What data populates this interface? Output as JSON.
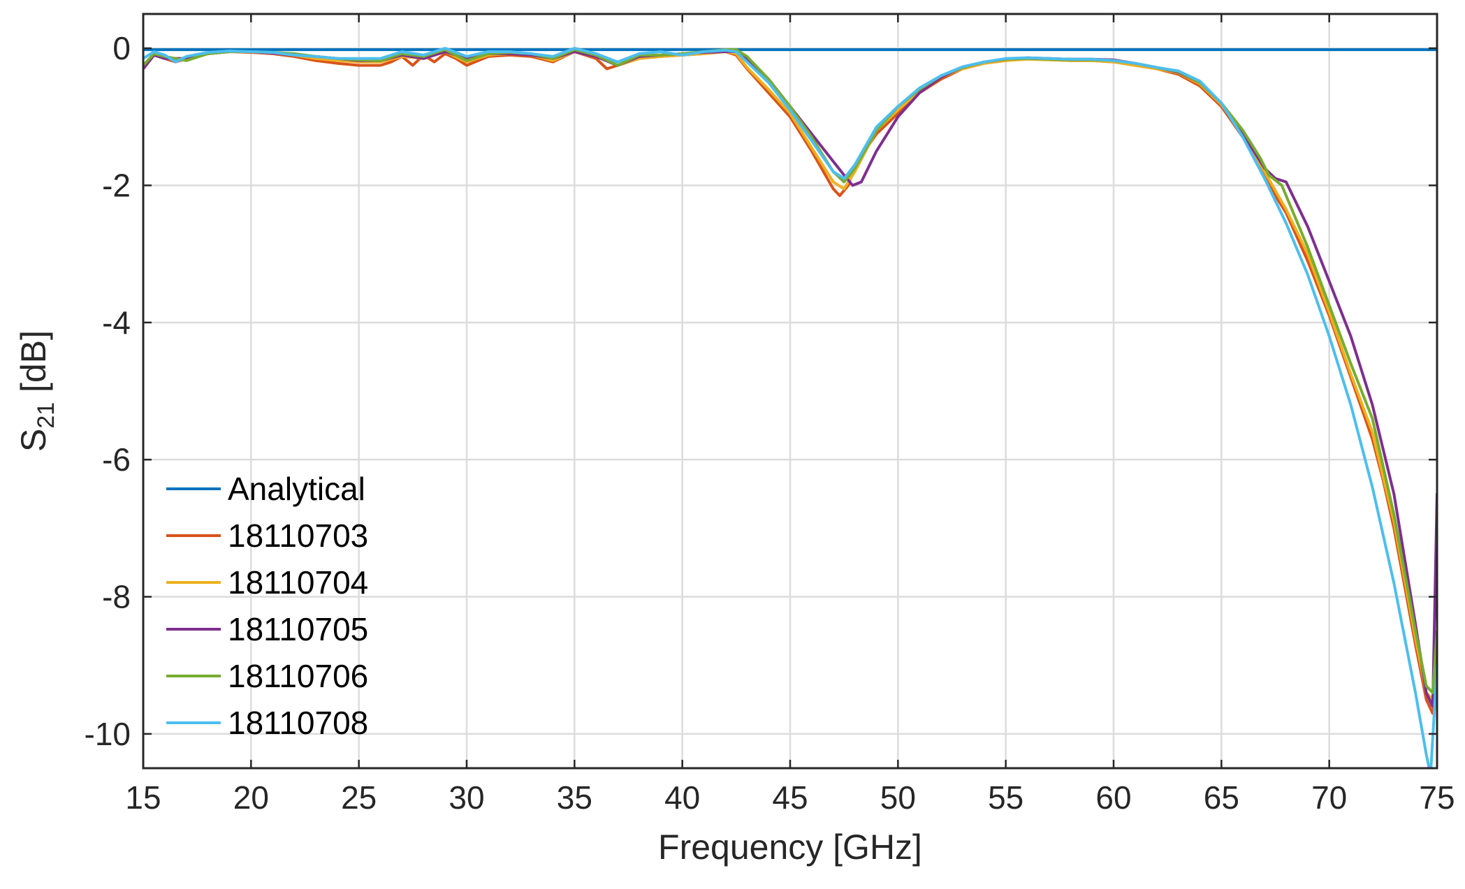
{
  "chart_data": {
    "type": "line",
    "title": "",
    "xlabel": "Frequency [GHz]",
    "ylabel": "S",
    "ylabel_sub": "21",
    "ylabel_unit": " [dB]",
    "xlim": [
      15,
      75
    ],
    "ylim": [
      -10.5,
      0.5
    ],
    "xticks": [
      15,
      20,
      25,
      30,
      35,
      40,
      45,
      50,
      55,
      60,
      65,
      70,
      75
    ],
    "yticks": [
      0,
      -2,
      -4,
      -6,
      -8,
      -10
    ],
    "grid": true,
    "legend_position": "bottom-left",
    "series": [
      {
        "name": "Analytical",
        "color": "#0072BD",
        "x": [
          15,
          75
        ],
        "y": [
          -0.02,
          -0.02
        ]
      },
      {
        "name": "18110703",
        "color": "#D95319",
        "x": [
          15,
          15.5,
          16,
          16.5,
          17,
          18,
          19,
          20,
          21,
          22,
          23,
          24,
          25,
          26,
          26.5,
          27,
          27.5,
          28,
          28.5,
          29,
          29.5,
          30,
          31,
          32,
          33,
          34,
          35,
          36,
          36.5,
          37,
          38,
          39,
          40,
          41,
          42,
          42.5,
          43,
          44,
          45,
          46,
          47,
          47.3,
          47.7,
          48,
          49,
          50,
          51,
          52,
          53,
          54,
          55,
          56,
          57,
          58,
          59,
          60,
          61,
          62,
          63,
          64,
          65,
          66,
          67,
          67.5,
          68,
          69,
          70,
          71,
          72,
          72.5,
          73,
          74,
          74.5,
          74.8,
          75
        ],
        "y": [
          -0.3,
          -0.1,
          -0.15,
          -0.2,
          -0.15,
          -0.08,
          -0.05,
          -0.06,
          -0.08,
          -0.12,
          -0.18,
          -0.22,
          -0.25,
          -0.25,
          -0.2,
          -0.12,
          -0.25,
          -0.1,
          -0.2,
          -0.08,
          -0.15,
          -0.25,
          -0.12,
          -0.1,
          -0.12,
          -0.2,
          -0.05,
          -0.15,
          -0.3,
          -0.25,
          -0.15,
          -0.12,
          -0.1,
          -0.08,
          -0.05,
          -0.1,
          -0.3,
          -0.65,
          -1.0,
          -1.5,
          -2.05,
          -2.15,
          -2.0,
          -1.7,
          -1.25,
          -0.95,
          -0.65,
          -0.45,
          -0.3,
          -0.22,
          -0.18,
          -0.15,
          -0.16,
          -0.18,
          -0.18,
          -0.2,
          -0.25,
          -0.3,
          -0.38,
          -0.55,
          -0.85,
          -1.3,
          -1.85,
          -2.15,
          -2.4,
          -3.1,
          -3.9,
          -4.8,
          -5.7,
          -6.3,
          -7.0,
          -8.7,
          -9.5,
          -9.7,
          -9.3
        ]
      },
      {
        "name": "18110704",
        "color": "#EDB120",
        "x": [
          15,
          15.5,
          16,
          17,
          18,
          19,
          20,
          21,
          22,
          23,
          24,
          25,
          26,
          27,
          28,
          29,
          30,
          31,
          32,
          33,
          34,
          35,
          36,
          37,
          38,
          39,
          40,
          41,
          42,
          42.5,
          43,
          44,
          45,
          46,
          47,
          47.5,
          48,
          49,
          50,
          51,
          52,
          53,
          54,
          55,
          56,
          57,
          58,
          59,
          60,
          61,
          62,
          63,
          64,
          65,
          66,
          67,
          68,
          69,
          70,
          71,
          72,
          73,
          74,
          74.5,
          74.8,
          75
        ],
        "y": [
          -0.25,
          -0.1,
          -0.15,
          -0.15,
          -0.08,
          -0.05,
          -0.05,
          -0.07,
          -0.1,
          -0.15,
          -0.18,
          -0.2,
          -0.2,
          -0.12,
          -0.15,
          -0.05,
          -0.2,
          -0.1,
          -0.08,
          -0.1,
          -0.18,
          -0.05,
          -0.12,
          -0.25,
          -0.15,
          -0.12,
          -0.1,
          -0.08,
          -0.05,
          -0.08,
          -0.28,
          -0.6,
          -0.95,
          -1.45,
          -1.95,
          -2.05,
          -1.8,
          -1.2,
          -0.9,
          -0.62,
          -0.42,
          -0.3,
          -0.22,
          -0.18,
          -0.16,
          -0.17,
          -0.18,
          -0.18,
          -0.2,
          -0.25,
          -0.3,
          -0.36,
          -0.52,
          -0.82,
          -1.25,
          -1.8,
          -2.35,
          -3.0,
          -3.85,
          -4.75,
          -5.6,
          -6.9,
          -8.6,
          -9.4,
          -9.5,
          -9.0
        ]
      },
      {
        "name": "18110705",
        "color": "#7E2F8E",
        "x": [
          15,
          15.5,
          16,
          17,
          18,
          19,
          20,
          21,
          22,
          23,
          24,
          25,
          26,
          27,
          28,
          29,
          30,
          31,
          32,
          33,
          34,
          35,
          36,
          37,
          38,
          39,
          40,
          41,
          42,
          42.5,
          43,
          44,
          45,
          46,
          47,
          47.5,
          47.9,
          48.3,
          49,
          50,
          51,
          52,
          53,
          54,
          55,
          56,
          57,
          58,
          59,
          60,
          61,
          62,
          63,
          64,
          65,
          66,
          67,
          67.5,
          68,
          69,
          70,
          71,
          72,
          73,
          74,
          74.5,
          74.8,
          75
        ],
        "y": [
          -0.3,
          -0.1,
          -0.15,
          -0.15,
          -0.08,
          -0.05,
          -0.05,
          -0.07,
          -0.1,
          -0.12,
          -0.15,
          -0.18,
          -0.18,
          -0.1,
          -0.15,
          -0.05,
          -0.15,
          -0.08,
          -0.08,
          -0.1,
          -0.15,
          -0.05,
          -0.12,
          -0.25,
          -0.12,
          -0.1,
          -0.08,
          -0.06,
          -0.05,
          -0.05,
          -0.15,
          -0.45,
          -0.85,
          -1.25,
          -1.65,
          -1.85,
          -2.0,
          -1.95,
          -1.5,
          -1.0,
          -0.65,
          -0.42,
          -0.28,
          -0.2,
          -0.16,
          -0.14,
          -0.15,
          -0.16,
          -0.16,
          -0.17,
          -0.22,
          -0.28,
          -0.35,
          -0.5,
          -0.8,
          -1.25,
          -1.75,
          -1.9,
          -1.95,
          -2.6,
          -3.4,
          -4.2,
          -5.2,
          -6.5,
          -8.4,
          -9.4,
          -9.6,
          -6.5
        ]
      },
      {
        "name": "18110706",
        "color": "#77AC30",
        "x": [
          15,
          15.5,
          16,
          17,
          18,
          19,
          20,
          21,
          22,
          23,
          24,
          25,
          26,
          27,
          28,
          29,
          30,
          31,
          32,
          33,
          34,
          35,
          36,
          37,
          38,
          39,
          40,
          41,
          42,
          42.5,
          43,
          44,
          45,
          46,
          47,
          47.5,
          48,
          49,
          50,
          51,
          52,
          53,
          54,
          55,
          56,
          57,
          58,
          59,
          60,
          61,
          62,
          63,
          64,
          65,
          66,
          66.8,
          67.2,
          67.8,
          69,
          70,
          71,
          72,
          73,
          74,
          74.5,
          74.8,
          75
        ],
        "y": [
          -0.25,
          -0.08,
          -0.12,
          -0.18,
          -0.08,
          -0.05,
          -0.05,
          -0.06,
          -0.08,
          -0.12,
          -0.15,
          -0.17,
          -0.18,
          -0.08,
          -0.12,
          -0.02,
          -0.18,
          -0.08,
          -0.06,
          -0.08,
          -0.15,
          -0.02,
          -0.1,
          -0.25,
          -0.1,
          -0.1,
          -0.08,
          -0.05,
          -0.02,
          -0.02,
          -0.12,
          -0.45,
          -0.85,
          -1.3,
          -1.8,
          -1.95,
          -1.75,
          -1.2,
          -0.85,
          -0.6,
          -0.4,
          -0.28,
          -0.2,
          -0.16,
          -0.15,
          -0.16,
          -0.17,
          -0.17,
          -0.18,
          -0.22,
          -0.28,
          -0.34,
          -0.5,
          -0.8,
          -1.2,
          -1.6,
          -1.85,
          -2.0,
          -2.9,
          -3.75,
          -4.6,
          -5.4,
          -6.8,
          -8.5,
          -9.3,
          -9.4,
          -8.5
        ]
      },
      {
        "name": "18110708",
        "color": "#4DBEEE",
        "x": [
          15,
          15.5,
          16,
          16.5,
          17,
          18,
          19,
          20,
          21,
          22,
          23,
          24,
          25,
          26,
          27,
          28,
          29,
          30,
          31,
          32,
          33,
          34,
          35,
          36,
          37,
          38,
          39,
          40,
          41,
          42,
          42.5,
          43,
          44,
          45,
          46,
          47,
          47.5,
          48,
          49,
          50,
          51,
          52,
          53,
          54,
          55,
          56,
          57,
          58,
          59,
          60,
          61,
          62,
          63,
          64,
          65,
          66,
          67,
          68,
          69,
          70,
          71,
          72,
          73,
          74,
          74.5,
          74.7,
          75
        ],
        "y": [
          -0.15,
          -0.05,
          -0.1,
          -0.2,
          -0.12,
          -0.06,
          -0.04,
          -0.05,
          -0.06,
          -0.1,
          -0.12,
          -0.15,
          -0.15,
          -0.15,
          -0.05,
          -0.1,
          0.0,
          -0.12,
          -0.05,
          -0.05,
          -0.08,
          -0.12,
          0.0,
          -0.08,
          -0.2,
          -0.08,
          -0.05,
          -0.1,
          -0.05,
          -0.03,
          -0.05,
          -0.2,
          -0.5,
          -0.9,
          -1.35,
          -1.8,
          -1.9,
          -1.7,
          -1.15,
          -0.85,
          -0.58,
          -0.4,
          -0.27,
          -0.2,
          -0.15,
          -0.14,
          -0.15,
          -0.16,
          -0.16,
          -0.18,
          -0.22,
          -0.28,
          -0.33,
          -0.48,
          -0.8,
          -1.3,
          -1.9,
          -2.55,
          -3.3,
          -4.2,
          -5.2,
          -6.4,
          -7.8,
          -9.4,
          -10.3,
          -10.6,
          -9.0
        ]
      }
    ]
  }
}
